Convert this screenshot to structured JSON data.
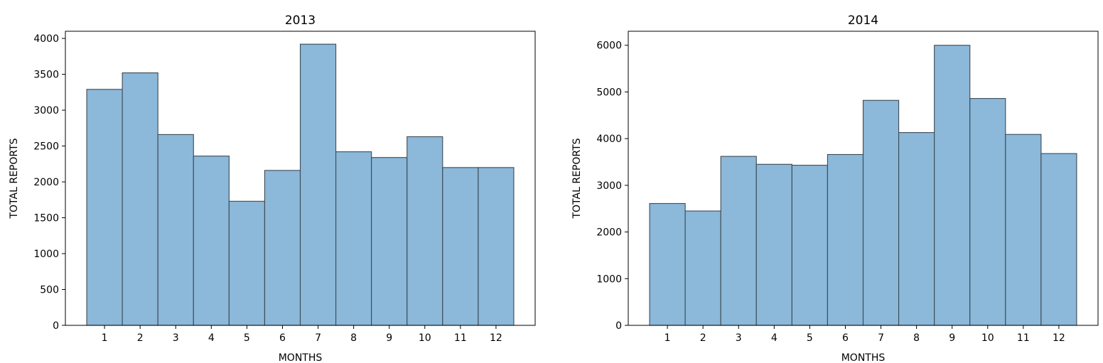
{
  "chart_data": [
    {
      "type": "bar",
      "title": "2013",
      "xlabel": "MONTHS",
      "ylabel": "TOTAL REPORTS",
      "categories": [
        "1",
        "2",
        "3",
        "4",
        "5",
        "6",
        "7",
        "8",
        "9",
        "10",
        "11",
        "12"
      ],
      "values": [
        3290,
        3520,
        2660,
        2360,
        1730,
        2160,
        3920,
        2420,
        2340,
        2630,
        2200,
        2200
      ],
      "ylim": [
        0,
        4100
      ],
      "yticks": [
        "0",
        "500",
        "1000",
        "1500",
        "2000",
        "2500",
        "3000",
        "3500",
        "4000"
      ],
      "grid": false,
      "bar_color": "#8cb8d9",
      "edge_color": "#3b4a55"
    },
    {
      "type": "bar",
      "title": "2014",
      "xlabel": "MONTHS",
      "ylabel": "TOTAL REPORTS",
      "categories": [
        "1",
        "2",
        "3",
        "4",
        "5",
        "6",
        "7",
        "8",
        "9",
        "10",
        "11",
        "12"
      ],
      "values": [
        2610,
        2450,
        3620,
        3450,
        3430,
        3660,
        4820,
        4130,
        6000,
        4860,
        4090,
        3680
      ],
      "ylim": [
        0,
        6300
      ],
      "yticks": [
        "0",
        "1000",
        "2000",
        "3000",
        "4000",
        "5000",
        "6000"
      ],
      "grid": false,
      "bar_color": "#8cb8d9",
      "edge_color": "#3b4a55"
    }
  ]
}
